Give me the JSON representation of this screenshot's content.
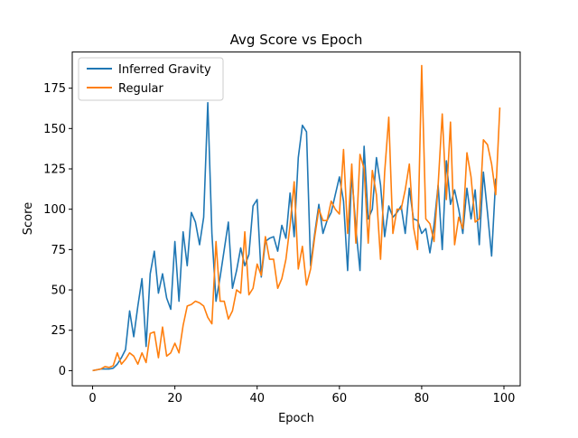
{
  "chart_data": {
    "type": "line",
    "title": "Avg Score vs Epoch",
    "xlabel": "Epoch",
    "ylabel": "Score",
    "xlim": [
      -4.95,
      103.95
    ],
    "ylim": [
      -9.4,
      197.4
    ],
    "xticks": [
      0,
      20,
      40,
      60,
      80,
      100
    ],
    "yticks": [
      0,
      25,
      50,
      75,
      100,
      125,
      150,
      175
    ],
    "grid": false,
    "legend_position": "top-left",
    "x": [
      0,
      1,
      2,
      3,
      4,
      5,
      6,
      7,
      8,
      9,
      10,
      11,
      12,
      13,
      14,
      15,
      16,
      17,
      18,
      19,
      20,
      21,
      22,
      23,
      24,
      25,
      26,
      27,
      28,
      29,
      30,
      31,
      32,
      33,
      34,
      35,
      36,
      37,
      38,
      39,
      40,
      41,
      42,
      43,
      44,
      45,
      46,
      47,
      48,
      49,
      50,
      51,
      52,
      53,
      54,
      55,
      56,
      57,
      58,
      59,
      60,
      61,
      62,
      63,
      64,
      65,
      66,
      67,
      68,
      69,
      70,
      71,
      72,
      73,
      74,
      75,
      76,
      77,
      78,
      79,
      80,
      81,
      82,
      83,
      84,
      85,
      86,
      87,
      88,
      89,
      90,
      91,
      92,
      93,
      94,
      95,
      96,
      97,
      98,
      99
    ],
    "series": [
      {
        "name": "Inferred Gravity",
        "color": "#1f77b4",
        "values": [
          0,
          0.5,
          1,
          1,
          1,
          1.5,
          4,
          8,
          13,
          37,
          21,
          40,
          57,
          15,
          60,
          74,
          48,
          60,
          45,
          38,
          80,
          43,
          86,
          65,
          98,
          92,
          78,
          95,
          166,
          85,
          43,
          58,
          75,
          92,
          51,
          62,
          76,
          65,
          72,
          102,
          106,
          58,
          80,
          82,
          83,
          74,
          90,
          82,
          110,
          83,
          132,
          152,
          148,
          65,
          85,
          103,
          85,
          93,
          98,
          109,
          120,
          105,
          62,
          122,
          88,
          62,
          139,
          94,
          100,
          132,
          115,
          83,
          102,
          95,
          98,
          102,
          85,
          113,
          94,
          93,
          85,
          88,
          73,
          90,
          115,
          75,
          130,
          103,
          112,
          100,
          85,
          113,
          94,
          112,
          78,
          123,
          98,
          71,
          119,
          null
        ]
      },
      {
        "name": "Regular",
        "color": "#ff7f0e",
        "values": [
          0,
          0.5,
          1,
          2.5,
          2,
          3,
          11,
          4,
          7,
          11,
          9,
          4,
          11,
          5,
          23,
          24,
          8,
          27,
          9,
          11,
          17,
          11,
          28,
          40,
          41,
          43,
          42,
          40,
          33,
          29,
          80,
          43,
          43,
          32,
          37,
          50,
          48,
          86,
          47,
          51,
          66,
          59,
          83,
          69,
          69,
          51,
          57,
          69,
          90,
          117,
          63,
          77,
          53,
          63,
          83,
          100,
          93,
          93,
          105,
          100,
          97,
          137,
          85,
          128,
          79,
          134,
          125,
          79,
          124,
          109,
          69,
          123,
          157,
          85,
          100,
          100,
          112,
          128,
          89,
          75,
          189,
          94,
          91,
          80,
          115,
          159,
          106,
          154,
          78,
          95,
          88,
          135,
          120,
          92,
          94,
          143,
          140,
          128,
          109,
          163
        ]
      }
    ]
  }
}
